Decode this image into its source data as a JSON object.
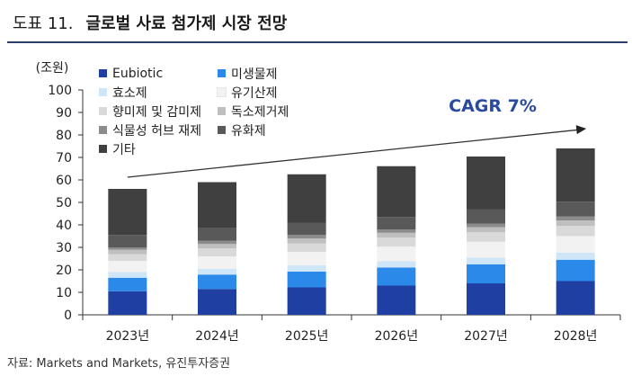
{
  "header": {
    "figure_label": "도표 11.",
    "title": "글로벌 사료 첨가제 시장 전망"
  },
  "source": "자료: Markets and Markets, 유진투자증권",
  "chart_data": {
    "type": "bar",
    "stacked": true,
    "unit_label": "(조원)",
    "categories": [
      "2023년",
      "2024년",
      "2025년",
      "2026년",
      "2027년",
      "2028년"
    ],
    "ylim": [
      0,
      100
    ],
    "yticks": [
      0,
      10,
      20,
      30,
      40,
      50,
      60,
      70,
      80,
      90,
      100
    ],
    "grid": false,
    "legend_position": "top-left",
    "series": [
      {
        "name": "Eubiotic",
        "color": "#1f3fa3",
        "values": [
          10.5,
          11.5,
          12.2,
          13.0,
          14.0,
          15.0
        ]
      },
      {
        "name": "미생물제",
        "color": "#2b89ea",
        "values": [
          6.0,
          6.4,
          7.0,
          8.0,
          8.5,
          9.5
        ]
      },
      {
        "name": "효소제",
        "color": "#cfe5f8",
        "values": [
          2.5,
          2.6,
          2.8,
          2.8,
          3.0,
          3.2
        ]
      },
      {
        "name": "유기산제",
        "color": "#f2f2f2",
        "values": [
          5.0,
          5.5,
          6.0,
          6.5,
          7.0,
          7.3
        ]
      },
      {
        "name": "향미제 및 감미제",
        "color": "#d9d9d9",
        "values": [
          3.0,
          3.5,
          3.8,
          4.0,
          4.2,
          4.5
        ]
      },
      {
        "name": "독소제거제",
        "color": "#bfbfbf",
        "values": [
          2.0,
          2.0,
          2.2,
          2.2,
          2.3,
          2.5
        ]
      },
      {
        "name": "식물성 허브 재제",
        "color": "#8c8c8c",
        "values": [
          1.0,
          1.5,
          1.5,
          1.5,
          1.5,
          1.8
        ]
      },
      {
        "name": "유화제",
        "color": "#595959",
        "values": [
          5.5,
          5.5,
          5.5,
          5.5,
          6.5,
          6.5
        ]
      },
      {
        "name": "기타",
        "color": "#404040",
        "values": [
          20.5,
          20.5,
          21.5,
          22.6,
          23.4,
          23.7
        ]
      }
    ],
    "annotation": {
      "text": "CAGR 7%",
      "color": "#2a4aa0"
    }
  }
}
